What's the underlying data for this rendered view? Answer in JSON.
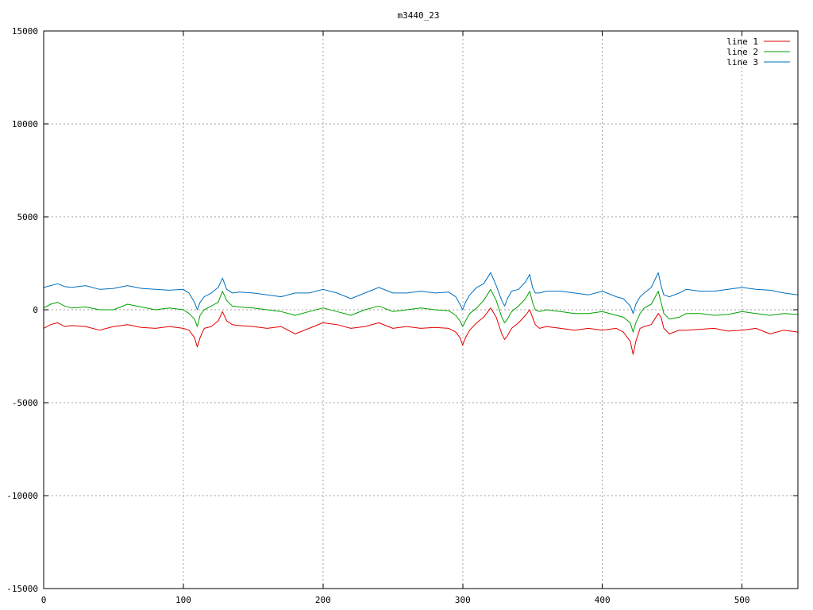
{
  "chart_data": {
    "type": "line",
    "title": "m3440_23",
    "xlabel": "",
    "ylabel": "",
    "xlim": [
      0,
      540
    ],
    "ylim": [
      -15000,
      15000
    ],
    "x_ticks": [
      0,
      100,
      200,
      300,
      400,
      500
    ],
    "y_ticks": [
      -15000,
      -10000,
      -5000,
      0,
      5000,
      10000,
      15000
    ],
    "grid": true,
    "legend_position": "top-right",
    "x": [
      0,
      5,
      10,
      15,
      20,
      30,
      40,
      50,
      60,
      70,
      80,
      90,
      100,
      104,
      108,
      110,
      112,
      115,
      120,
      125,
      128,
      131,
      135,
      140,
      150,
      160,
      170,
      180,
      190,
      200,
      210,
      220,
      230,
      240,
      250,
      260,
      270,
      280,
      290,
      295,
      298,
      300,
      302,
      305,
      310,
      315,
      320,
      324,
      328,
      330,
      332,
      335,
      340,
      345,
      348,
      350,
      352,
      355,
      360,
      370,
      380,
      390,
      400,
      410,
      415,
      420,
      422,
      424,
      427,
      430,
      435,
      440,
      442,
      444,
      448,
      455,
      460,
      470,
      480,
      490,
      500,
      510,
      520,
      530,
      540
    ],
    "series": [
      {
        "name": "line 1",
        "color": "#e00000",
        "values": [
          -1000,
          -800,
          -700,
          -900,
          -850,
          -900,
          -1100,
          -900,
          -800,
          -950,
          -1000,
          -900,
          -1000,
          -1100,
          -1500,
          -2000,
          -1500,
          -1000,
          -900,
          -600,
          -100,
          -600,
          -800,
          -850,
          -900,
          -1000,
          -900,
          -1300,
          -1000,
          -700,
          -800,
          -1000,
          -900,
          -700,
          -1000,
          -900,
          -1000,
          -950,
          -1000,
          -1200,
          -1500,
          -1900,
          -1500,
          -1100,
          -700,
          -400,
          100,
          -400,
          -1300,
          -1600,
          -1400,
          -1000,
          -700,
          -300,
          0,
          -400,
          -800,
          -1000,
          -900,
          -1000,
          -1100,
          -1000,
          -1100,
          -1000,
          -1200,
          -1700,
          -2400,
          -1700,
          -1000,
          -900,
          -800,
          -200,
          -400,
          -1000,
          -1300,
          -1100,
          -1100,
          -1050,
          -1000,
          -1150,
          -1100,
          -1000,
          -1300,
          -1100,
          -1200
        ]
      },
      {
        "name": "line 2",
        "color": "#00a000",
        "values": [
          100,
          300,
          400,
          200,
          100,
          150,
          0,
          0,
          300,
          150,
          0,
          100,
          0,
          -200,
          -500,
          -900,
          -300,
          0,
          200,
          400,
          1000,
          500,
          200,
          150,
          100,
          0,
          -100,
          -300,
          -100,
          100,
          -100,
          -300,
          0,
          200,
          -100,
          0,
          100,
          0,
          -50,
          -300,
          -600,
          -900,
          -600,
          -200,
          100,
          500,
          1100,
          500,
          -400,
          -700,
          -500,
          -100,
          200,
          600,
          1000,
          400,
          0,
          -100,
          0,
          -100,
          -200,
          -200,
          -100,
          -300,
          -400,
          -700,
          -1200,
          -700,
          -200,
          100,
          300,
          1000,
          400,
          -200,
          -500,
          -400,
          -200,
          -200,
          -300,
          -250,
          -100,
          -200,
          -300,
          -200,
          -250
        ]
      },
      {
        "name": "line 3",
        "color": "#0070c0",
        "values": [
          1200,
          1300,
          1400,
          1250,
          1200,
          1300,
          1100,
          1150,
          1300,
          1150,
          1100,
          1050,
          1100,
          900,
          400,
          0,
          400,
          700,
          900,
          1200,
          1700,
          1100,
          900,
          950,
          900,
          800,
          700,
          900,
          900,
          1100,
          900,
          600,
          900,
          1200,
          900,
          900,
          1000,
          900,
          950,
          700,
          300,
          0,
          400,
          800,
          1200,
          1400,
          2000,
          1300,
          500,
          200,
          600,
          1000,
          1100,
          1500,
          1900,
          1200,
          900,
          900,
          1000,
          1000,
          900,
          800,
          1000,
          700,
          600,
          200,
          -200,
          300,
          700,
          900,
          1200,
          2000,
          1300,
          800,
          700,
          900,
          1100,
          1000,
          1000,
          1100,
          1200,
          1100,
          1050,
          900,
          800
        ]
      }
    ]
  }
}
